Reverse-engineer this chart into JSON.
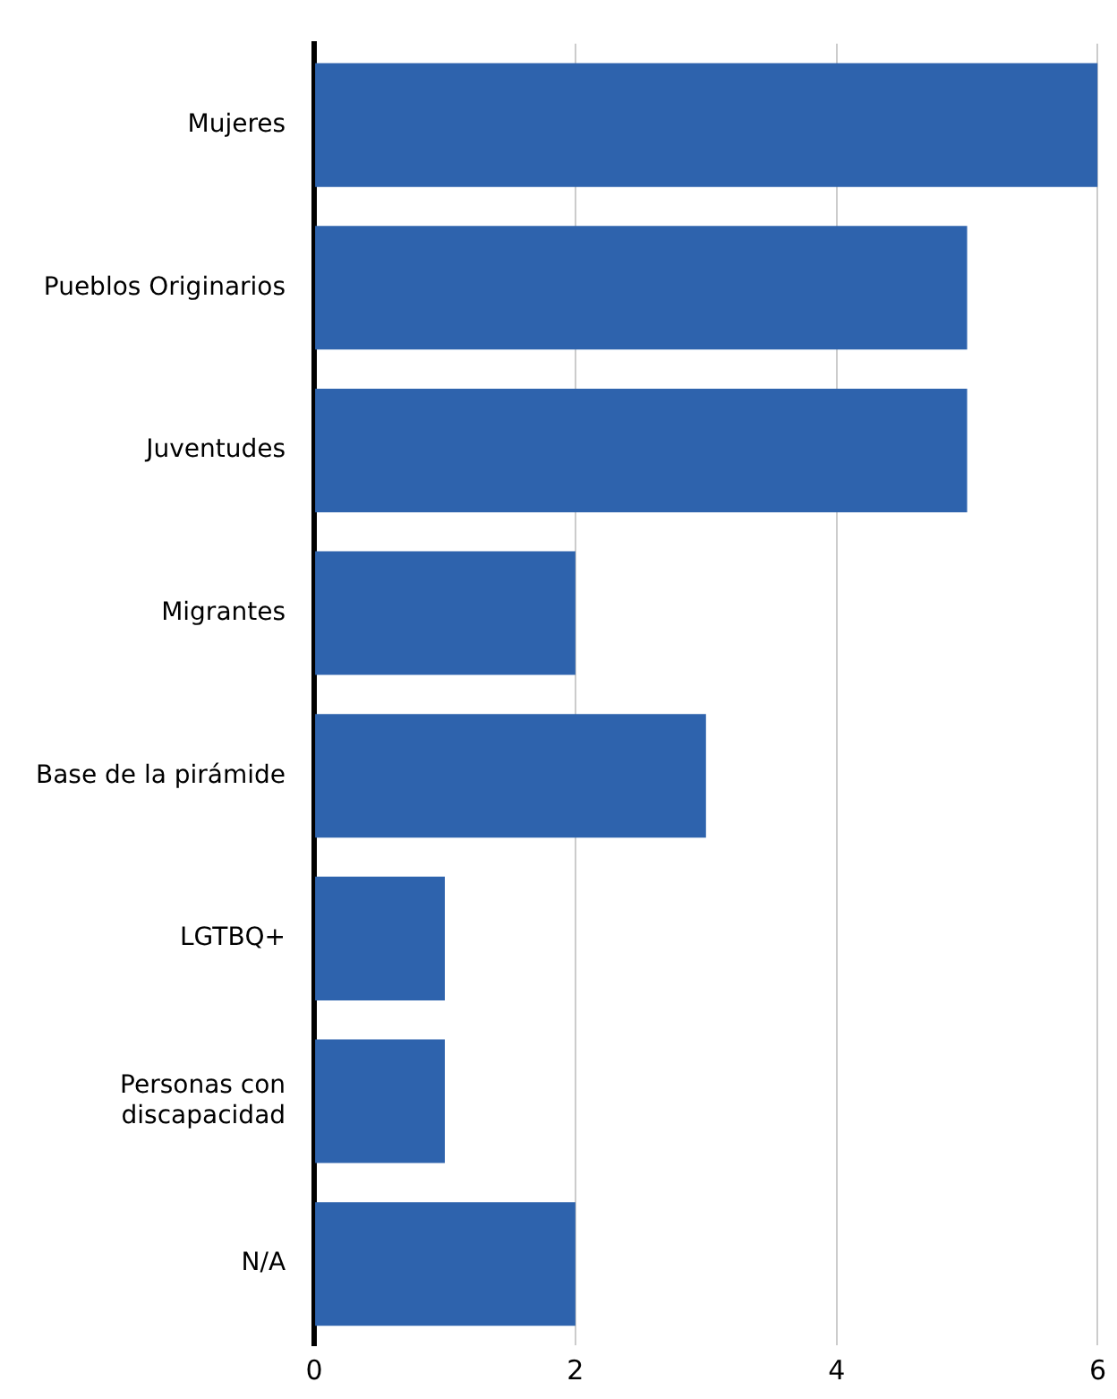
{
  "chart_data": {
    "type": "bar",
    "orientation": "horizontal",
    "categories": [
      "Mujeres",
      "Pueblos Originarios",
      "Juventudes",
      "Migrantes",
      "Base de la pirámide",
      "LGTBQ+",
      "Personas con discapacidad",
      "N/A"
    ],
    "values": [
      6,
      5,
      5,
      2,
      3,
      1,
      1,
      2
    ],
    "color": "#2e63ad",
    "xlim": [
      0,
      6
    ],
    "xticks": [
      0,
      2,
      4,
      6
    ],
    "grid": "x",
    "legend": false
  }
}
